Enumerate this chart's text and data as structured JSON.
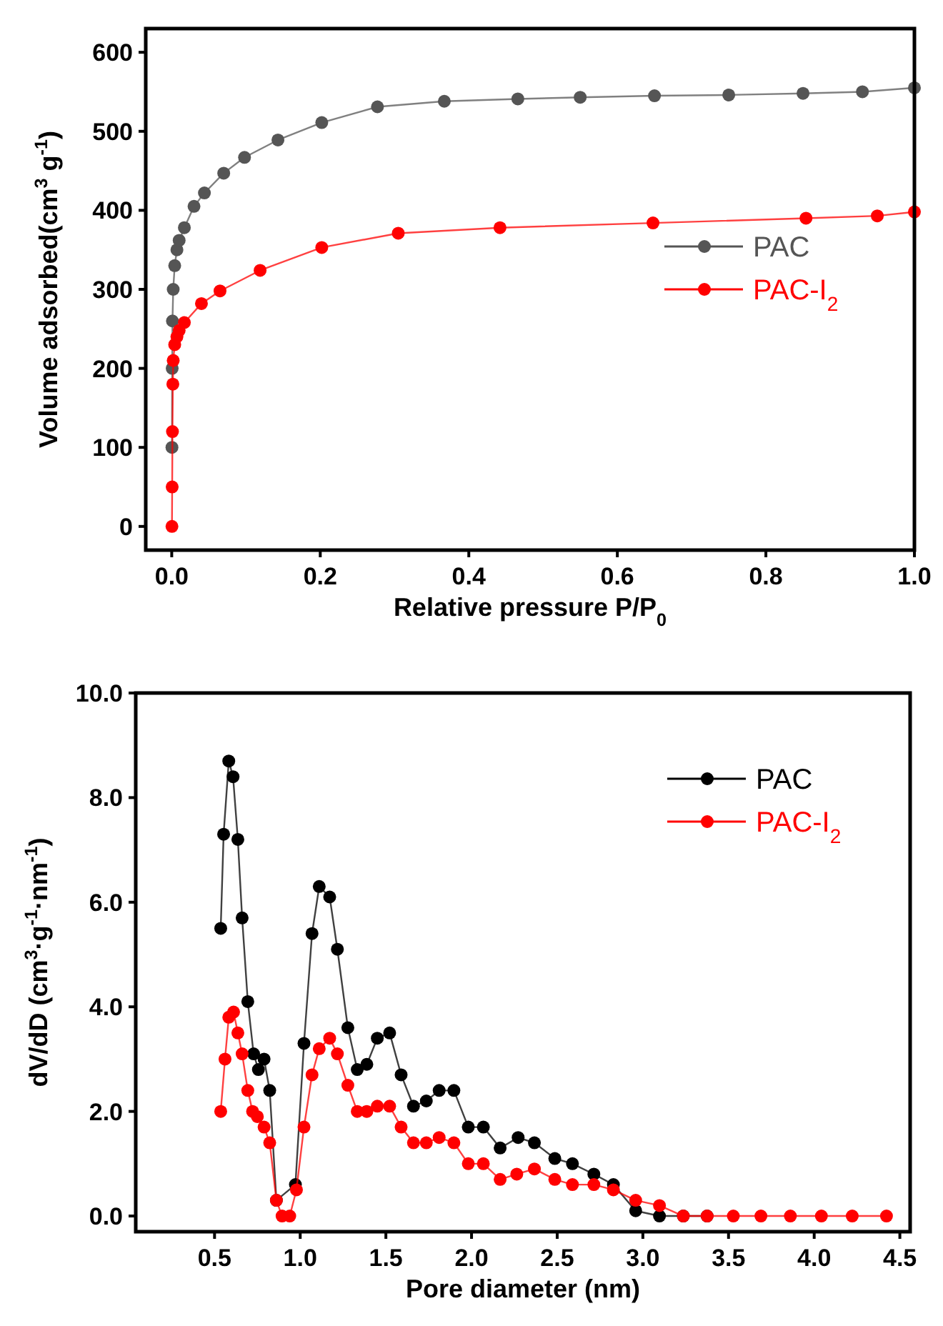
{
  "chart_data": [
    {
      "type": "line",
      "xlabel": "Relative pressure P/P$_{0}$",
      "ylabel": "Volume adsorbed(cm$^{3}$ g$^{-1}$)",
      "xlim": [
        -0.035,
        1.0
      ],
      "ylim": [
        -30,
        630
      ],
      "xticks": [
        {
          "value": 0,
          "label": "0.0"
        },
        {
          "value": 0.2,
          "label": "0.2"
        },
        {
          "value": 0.4,
          "label": "0.4"
        },
        {
          "value": 0.6,
          "label": "0.6"
        },
        {
          "value": 0.8,
          "label": "0.8"
        },
        {
          "value": 1.0,
          "label": "1.0"
        }
      ],
      "yticks": [
        0,
        100,
        200,
        300,
        400,
        500,
        600
      ],
      "marker": "circle",
      "legend": "right",
      "grid": false,
      "series": [
        {
          "name": "PAC",
          "color": "#555555",
          "x": [
            0.0003,
            0.0006,
            0.001,
            0.002,
            0.004,
            0.007,
            0.01,
            0.017,
            0.03,
            0.044,
            0.07,
            0.098,
            0.143,
            0.202,
            0.277,
            0.367,
            0.466,
            0.55,
            0.65,
            0.75,
            0.85,
            0.93,
            1.0
          ],
          "values": [
            100,
            200,
            260,
            300,
            330,
            350,
            362,
            378,
            405,
            422,
            447,
            467,
            489,
            511,
            531,
            538,
            541,
            543,
            545,
            546,
            548,
            550,
            555
          ]
        },
        {
          "name": "PAC-I$_{2}$",
          "color": "#ff0000",
          "x": [
            0.0003,
            0.0006,
            0.001,
            0.0015,
            0.002,
            0.004,
            0.007,
            0.01,
            0.017,
            0.04,
            0.065,
            0.119,
            0.202,
            0.305,
            0.442,
            0.648,
            0.854,
            0.95,
            1.0
          ],
          "values": [
            0,
            50,
            120,
            180,
            210,
            230,
            240,
            248,
            258,
            282,
            298,
            324,
            353,
            371,
            378,
            384,
            390,
            393,
            398
          ]
        }
      ]
    },
    {
      "type": "line",
      "xlabel": "Pore diameter (nm)",
      "ylabel": "dV/dD (cm$^{3}$·g$^{-1}$·nm$^{-1}$)",
      "xlim": [
        0.04,
        4.56
      ],
      "ylim": [
        -0.3,
        10.0
      ],
      "xticks": [
        0.5,
        {
          "value": 1,
          "label": "1.0"
        },
        1.5,
        {
          "value": 2,
          "label": "2.0"
        },
        2.5,
        {
          "value": 3,
          "label": "3.0"
        },
        3.5,
        {
          "value": 4,
          "label": "4.0"
        },
        4.5
      ],
      "yticks": [
        {
          "value": 0,
          "label": "0.0"
        },
        {
          "value": 2,
          "label": "2.0"
        },
        {
          "value": 4,
          "label": "4.0"
        },
        {
          "value": 6,
          "label": "6.0"
        },
        {
          "value": 8,
          "label": "8.0"
        },
        {
          "value": 10,
          "label": "10.0"
        }
      ],
      "marker": "circle",
      "legend": "top right",
      "grid": false,
      "series": [
        {
          "name": "PAC",
          "color": "#000000",
          "x": [
            0.536,
            0.553,
            0.583,
            0.608,
            0.636,
            0.661,
            0.694,
            0.728,
            0.756,
            0.789,
            0.822,
            0.861,
            0.972,
            1.022,
            1.069,
            1.111,
            1.172,
            1.217,
            1.278,
            1.333,
            1.389,
            1.45,
            1.522,
            1.589,
            1.661,
            1.736,
            1.811,
            1.897,
            1.981,
            2.069,
            2.167,
            2.272,
            2.367,
            2.486,
            2.589,
            2.714,
            2.828,
            2.958,
            3.097,
            3.236,
            3.375
          ],
          "values": [
            5.5,
            7.3,
            8.7,
            8.4,
            7.2,
            5.7,
            4.1,
            3.1,
            2.8,
            3.0,
            2.4,
            0.3,
            0.6,
            3.3,
            5.4,
            6.3,
            6.1,
            5.1,
            3.6,
            2.8,
            2.9,
            3.4,
            3.5,
            2.7,
            2.1,
            2.2,
            2.4,
            2.4,
            1.7,
            1.7,
            1.3,
            1.5,
            1.4,
            1.1,
            1.0,
            0.8,
            0.6,
            0.1,
            0,
            0,
            0
          ]
        },
        {
          "name": "PAC-I$_{2}$",
          "color": "#ff0000",
          "x": [
            0.536,
            0.561,
            0.583,
            0.611,
            0.636,
            0.661,
            0.694,
            0.722,
            0.75,
            0.789,
            0.822,
            0.861,
            0.894,
            0.939,
            0.978,
            1.022,
            1.069,
            1.111,
            1.172,
            1.217,
            1.278,
            1.333,
            1.389,
            1.45,
            1.522,
            1.589,
            1.661,
            1.736,
            1.811,
            1.897,
            1.981,
            2.069,
            2.167,
            2.264,
            2.367,
            2.486,
            2.589,
            2.714,
            2.828,
            2.958,
            3.097,
            3.236,
            3.375,
            3.528,
            3.689,
            3.861,
            4.042,
            4.222,
            4.422
          ],
          "values": [
            2.0,
            3.0,
            3.8,
            3.9,
            3.5,
            3.1,
            2.4,
            2.0,
            1.9,
            1.7,
            1.4,
            0.3,
            0,
            0,
            0.5,
            1.7,
            2.7,
            3.2,
            3.4,
            3.1,
            2.5,
            2.0,
            2.0,
            2.1,
            2.1,
            1.7,
            1.4,
            1.4,
            1.5,
            1.4,
            1.0,
            1.0,
            0.7,
            0.8,
            0.9,
            0.7,
            0.6,
            0.6,
            0.5,
            0.3,
            0.2,
            0,
            0,
            0,
            0,
            0,
            0,
            0,
            0
          ]
        }
      ]
    }
  ]
}
